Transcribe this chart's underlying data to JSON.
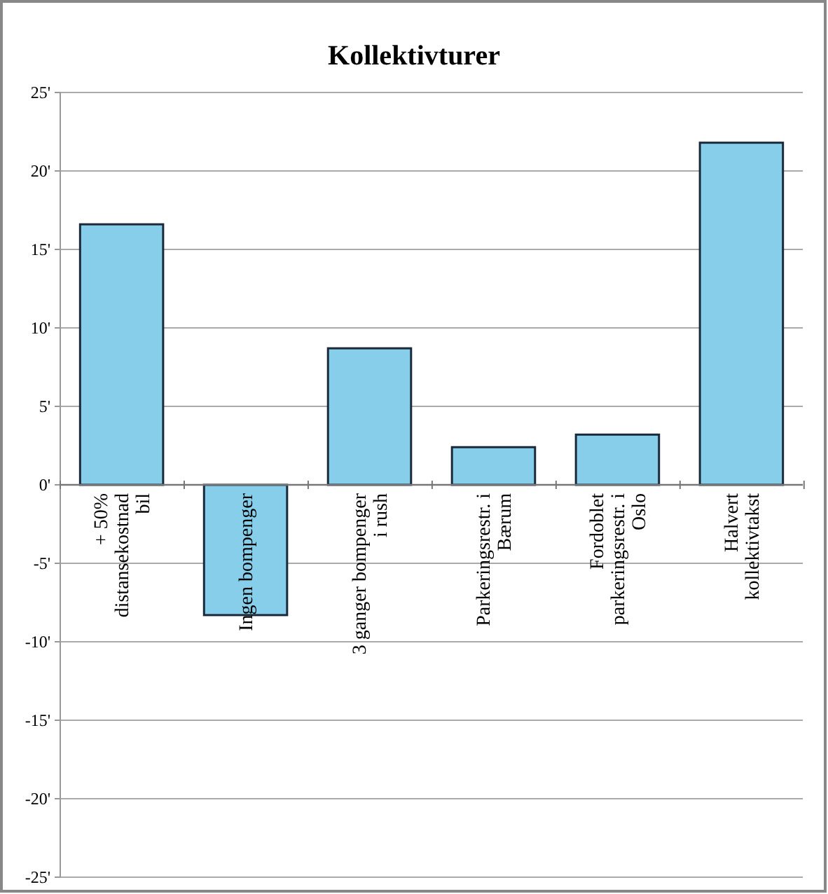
{
  "chart_data": {
    "type": "bar",
    "title": "Kollektivturer",
    "categories": [
      "+ 50% distansekostnad bil",
      "Ingen bompenger",
      "3 ganger bompenger i rush",
      "Parkeringsrestr. i Bærum",
      "Fordoblet parkeringsrestr. i Oslo",
      "Halvert kollektivtakst"
    ],
    "values": [
      16.6,
      -8.3,
      8.7,
      2.4,
      3.2,
      21.8
    ],
    "color": "#87ceeb",
    "ylim": [
      -25,
      25
    ],
    "yticks": [
      {
        "value": -25,
        "label": "-25'"
      },
      {
        "value": -20,
        "label": "-20'"
      },
      {
        "value": -15,
        "label": "-15'"
      },
      {
        "value": -10,
        "label": "-10'"
      },
      {
        "value": -5,
        "label": "-5'"
      },
      {
        "value": 0,
        "label": "0'"
      },
      {
        "value": 5,
        "label": "5'"
      },
      {
        "value": 10,
        "label": "10'"
      },
      {
        "value": 15,
        "label": "15'"
      },
      {
        "value": 20,
        "label": "20'"
      },
      {
        "value": 25,
        "label": "25'"
      }
    ],
    "grid": "y"
  }
}
